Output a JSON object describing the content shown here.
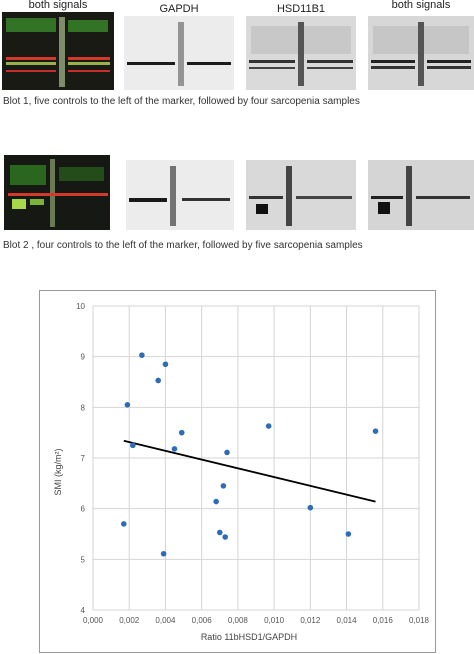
{
  "blot1": {
    "labels": [
      "both signals",
      "GAPDH",
      "HSD11B1",
      "both signals"
    ],
    "caption": "Blot 1, five controls to the left of the marker, followed by four sarcopenia samples"
  },
  "blot2": {
    "caption": "Blot 2 , four controls to the left of the marker, followed by five sarcopenia samples"
  },
  "chart_data": {
    "type": "scatter",
    "xlabel": "Ratio 11bHSD1/GAPDH",
    "ylabel": "SMI (kg/m²)",
    "xlim": [
      0,
      0.018
    ],
    "ylim": [
      4,
      10
    ],
    "x_ticks": [
      "0,000",
      "0,002",
      "0,004",
      "0,006",
      "0,008",
      "0,010",
      "0,012",
      "0,014",
      "0,016",
      "0,018"
    ],
    "y_ticks": [
      "4",
      "5",
      "6",
      "7",
      "8",
      "9",
      "10"
    ],
    "grid": true,
    "point_color": "#2e6db5",
    "trendline": {
      "x": [
        0.0017,
        0.0156
      ],
      "y": [
        7.34,
        6.14
      ]
    },
    "points": [
      {
        "x": 0.0017,
        "y": 5.7
      },
      {
        "x": 0.0019,
        "y": 8.05
      },
      {
        "x": 0.0022,
        "y": 7.25
      },
      {
        "x": 0.0027,
        "y": 9.03
      },
      {
        "x": 0.0036,
        "y": 8.53
      },
      {
        "x": 0.0039,
        "y": 5.11
      },
      {
        "x": 0.004,
        "y": 8.85
      },
      {
        "x": 0.0045,
        "y": 7.18
      },
      {
        "x": 0.0049,
        "y": 7.5
      },
      {
        "x": 0.0068,
        "y": 6.14
      },
      {
        "x": 0.007,
        "y": 5.53
      },
      {
        "x": 0.0072,
        "y": 6.45
      },
      {
        "x": 0.0073,
        "y": 5.44
      },
      {
        "x": 0.0074,
        "y": 7.11
      },
      {
        "x": 0.0097,
        "y": 7.63
      },
      {
        "x": 0.012,
        "y": 6.02
      },
      {
        "x": 0.0141,
        "y": 5.5
      },
      {
        "x": 0.0156,
        "y": 7.53
      }
    ]
  }
}
